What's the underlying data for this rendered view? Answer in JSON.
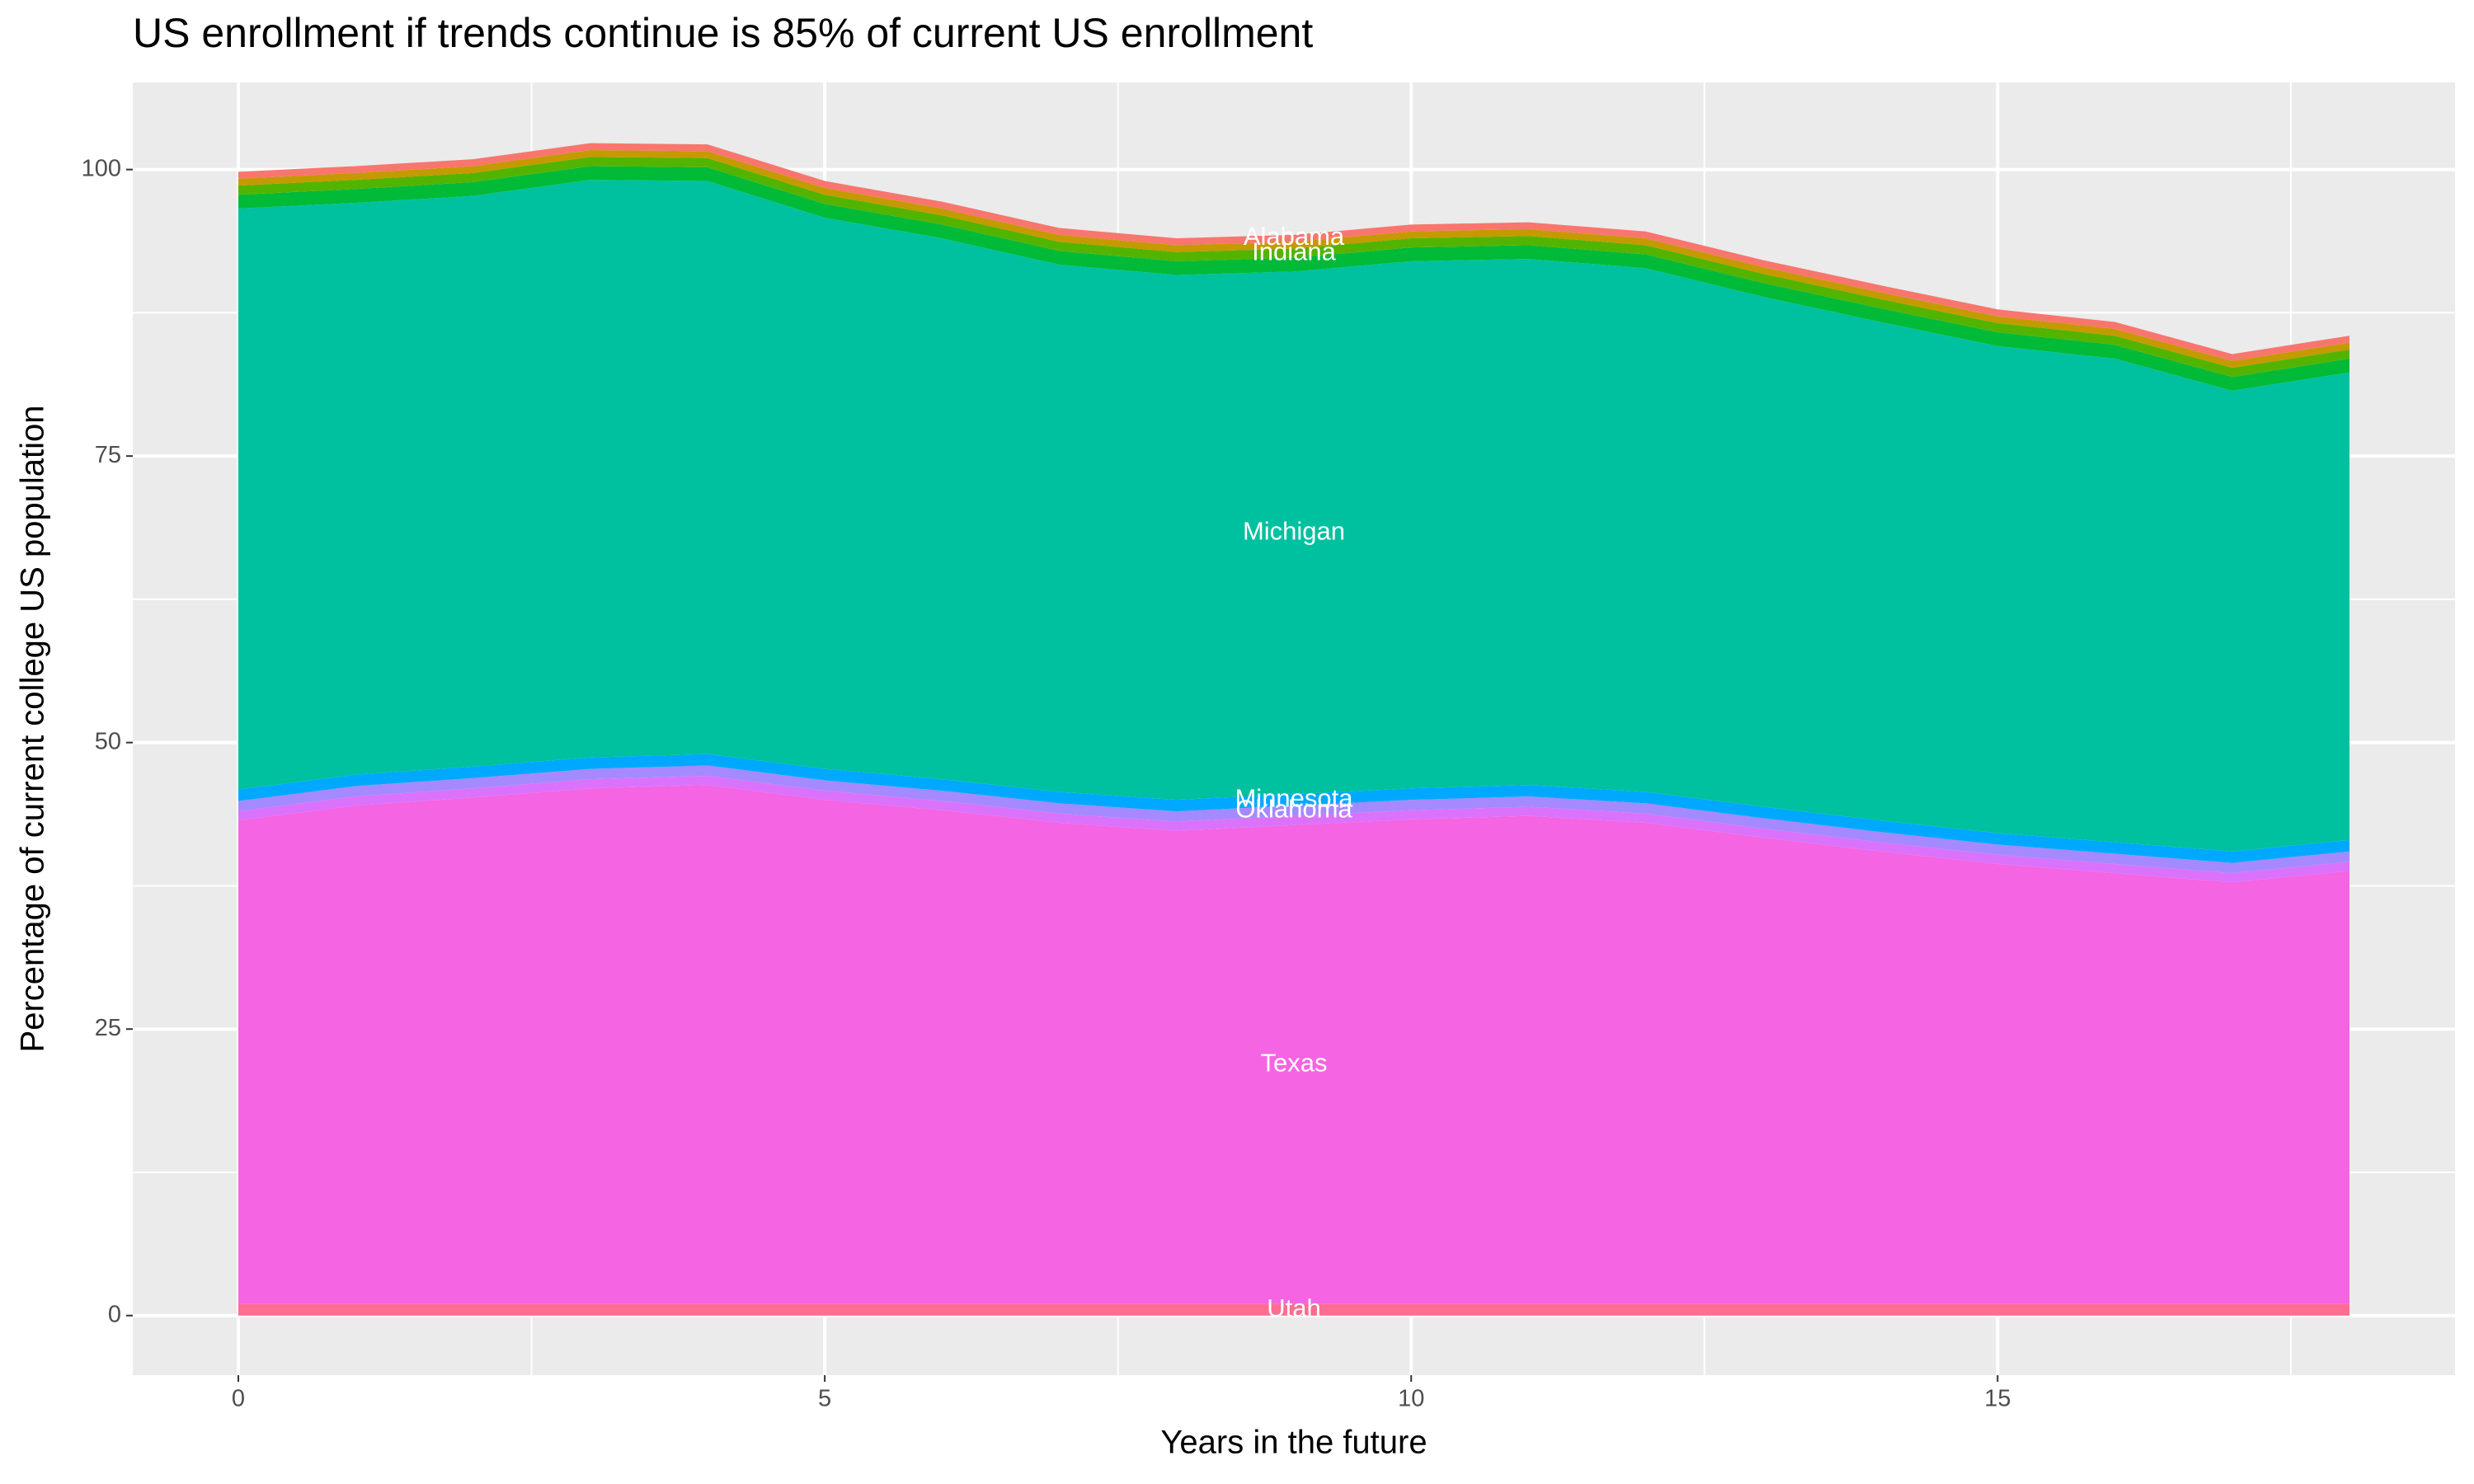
{
  "chart_data": {
    "type": "stacked_area",
    "title": "US enrollment if trends continue is 85% of current US enrollment",
    "x_label": "Years in the future",
    "y_label": "Percentage of current college US population",
    "x": [
      0,
      1,
      2,
      3,
      4,
      5,
      6,
      7,
      8,
      9,
      10,
      11,
      12,
      13,
      14,
      15,
      16,
      17,
      18
    ],
    "xlim": [
      -0.9,
      18.9
    ],
    "xticks": [
      0,
      5,
      10,
      15
    ],
    "xminor": [
      2.5,
      7.5,
      12.5,
      17.5
    ],
    "ylim": [
      -5.2,
      107.6
    ],
    "yticks": [
      0,
      25,
      50,
      75,
      100
    ],
    "yminor": [
      12.5,
      37.5,
      62.5,
      87.5
    ],
    "grid": true,
    "label_x": 9,
    "series": [
      {
        "name": "Utah",
        "color": "#FF6C91",
        "values": [
          1,
          1,
          1,
          1,
          1,
          1,
          1,
          1,
          1,
          1,
          1,
          1,
          1,
          1,
          1,
          1,
          1,
          1,
          1
        ]
      },
      {
        "name": "Texas",
        "color": "#F564E3",
        "values": [
          42.2,
          43.5,
          44.2,
          45.0,
          45.3,
          44.0,
          43.1,
          42.0,
          41.3,
          41.8,
          42.3,
          42.6,
          42.0,
          40.7,
          39.5,
          38.4,
          37.6,
          36.8,
          37.8
        ]
      },
      {
        "color": "#DB72FB",
        "values": [
          0.8,
          0.8,
          0.8,
          0.8,
          0.8,
          0.8,
          0.8,
          0.8,
          0.8,
          0.8,
          0.8,
          0.8,
          0.8,
          0.8,
          0.8,
          0.8,
          0.8,
          0.8,
          0.8
        ]
      },
      {
        "name": "Oklahoma",
        "color": "#A58AFF",
        "values": [
          0.9,
          0.9,
          0.9,
          0.9,
          0.9,
          0.9,
          0.9,
          0.9,
          0.9,
          0.9,
          0.9,
          0.9,
          0.9,
          0.9,
          0.9,
          0.9,
          0.9,
          0.9,
          0.9
        ]
      },
      {
        "name": "Minnesota",
        "color": "#00A9FF",
        "values": [
          1.0,
          1.0,
          1.0,
          1.0,
          1.0,
          1.0,
          1.0,
          1.0,
          1.0,
          1.0,
          1.0,
          1.0,
          1.0,
          1.0,
          1.0,
          1.0,
          1.0,
          1.0,
          1.0
        ]
      },
      {
        "name": "Michigan",
        "color": "#00C19F",
        "values": [
          50.7,
          49.9,
          49.8,
          50.4,
          50.0,
          48.1,
          47.2,
          46.0,
          45.8,
          45.6,
          46.0,
          45.9,
          45.7,
          44.5,
          43.5,
          42.5,
          42.2,
          40.2,
          40.8
        ]
      },
      {
        "color": "#00BA38",
        "values": [
          1.2,
          1.2,
          1.2,
          1.2,
          1.2,
          1.2,
          1.2,
          1.2,
          1.2,
          1.2,
          1.2,
          1.2,
          1.2,
          1.2,
          1.2,
          1.2,
          1.2,
          1.2,
          1.2
        ]
      },
      {
        "name": "Indiana",
        "color": "#53B400",
        "values": [
          0.8,
          0.8,
          0.8,
          0.8,
          0.8,
          0.8,
          0.8,
          0.8,
          0.8,
          0.8,
          0.8,
          0.8,
          0.8,
          0.8,
          0.8,
          0.8,
          0.8,
          0.8,
          0.8
        ]
      },
      {
        "color": "#C49A00",
        "values": [
          0.6,
          0.6,
          0.6,
          0.6,
          0.6,
          0.6,
          0.6,
          0.6,
          0.6,
          0.6,
          0.6,
          0.6,
          0.6,
          0.6,
          0.6,
          0.6,
          0.6,
          0.6,
          0.6
        ]
      },
      {
        "name": "Alabama",
        "color": "#F8766D",
        "values": [
          0.6,
          0.6,
          0.6,
          0.6,
          0.6,
          0.6,
          0.6,
          0.6,
          0.6,
          0.6,
          0.6,
          0.6,
          0.6,
          0.6,
          0.6,
          0.6,
          0.6,
          0.6,
          0.6
        ]
      }
    ]
  }
}
